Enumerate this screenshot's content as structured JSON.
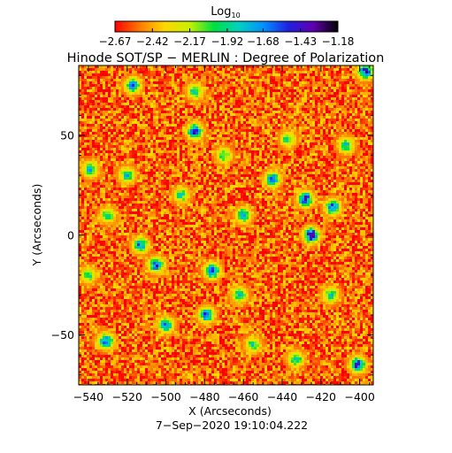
{
  "chart_data": {
    "type": "heatmap",
    "title": "Hinode SOT/SP − MERLIN : Degree of Polarization",
    "xlabel": "X (Arcseconds)",
    "ylabel": "Y (Arcseconds)",
    "timestamp": "7−Sep−2020 19:10:04.222",
    "colorbar": {
      "title_base": "Log",
      "title_sub": "10",
      "range": [
        -2.67,
        -1.18
      ],
      "tick_values": [
        -2.67,
        -2.42,
        -2.17,
        -1.92,
        -1.68,
        -1.43,
        -1.18
      ],
      "tick_labels": [
        "−2.67",
        "−2.42",
        "−2.17",
        "−1.92",
        "−1.68",
        "−1.43",
        "−1.18"
      ],
      "colormap": [
        "#ff0000",
        "#ff7a00",
        "#ffd700",
        "#c8f000",
        "#00e040",
        "#00d0c0",
        "#0090ff",
        "#2020e0",
        "#6000b0",
        "#000000"
      ]
    },
    "xlim": [
      -545,
      -393
    ],
    "ylim": [
      -75,
      85
    ],
    "xticks": [
      -540,
      -520,
      -500,
      -480,
      -460,
      -440,
      -420,
      -400
    ],
    "xtick_labels": [
      "−540",
      "−520",
      "−500",
      "−480",
      "−460",
      "−440",
      "−420",
      "−400"
    ],
    "yticks": [
      -50,
      0,
      50
    ],
    "ytick_labels": [
      "−50",
      "0",
      "50"
    ],
    "background_level": -2.55,
    "hot_spots": [
      {
        "x": -425,
        "y": 0,
        "level": -1.2
      },
      {
        "x": -428,
        "y": 18,
        "level": -1.4
      },
      {
        "x": -414,
        "y": 14,
        "level": -1.5
      },
      {
        "x": -445,
        "y": 28,
        "level": -1.6
      },
      {
        "x": -460,
        "y": 10,
        "level": -1.7
      },
      {
        "x": -476,
        "y": -18,
        "level": -1.4
      },
      {
        "x": -479,
        "y": -40,
        "level": -1.5
      },
      {
        "x": -505,
        "y": -15,
        "level": -1.5
      },
      {
        "x": -513,
        "y": -5,
        "level": -1.6
      },
      {
        "x": -531,
        "y": -53,
        "level": -1.5
      },
      {
        "x": -500,
        "y": -45,
        "level": -1.6
      },
      {
        "x": -485,
        "y": 52,
        "level": -1.4
      },
      {
        "x": -485,
        "y": 72,
        "level": -1.8
      },
      {
        "x": -539,
        "y": 33,
        "level": -1.7
      },
      {
        "x": -401,
        "y": -65,
        "level": -1.4
      },
      {
        "x": -397,
        "y": 82,
        "level": -1.4
      },
      {
        "x": -517,
        "y": 75,
        "level": -1.6
      },
      {
        "x": -437,
        "y": 48,
        "level": -1.9
      },
      {
        "x": -462,
        "y": -30,
        "level": -1.8
      },
      {
        "x": -407,
        "y": 45,
        "level": -1.8
      },
      {
        "x": -455,
        "y": -55,
        "level": -1.9
      },
      {
        "x": -520,
        "y": 30,
        "level": -1.8
      },
      {
        "x": -433,
        "y": -62,
        "level": -1.8
      },
      {
        "x": -470,
        "y": 40,
        "level": -1.9
      },
      {
        "x": -530,
        "y": 10,
        "level": -1.9
      },
      {
        "x": -415,
        "y": -30,
        "level": -1.8
      },
      {
        "x": -492,
        "y": 20,
        "level": -1.9
      },
      {
        "x": -540,
        "y": -20,
        "level": -1.9
      }
    ]
  }
}
